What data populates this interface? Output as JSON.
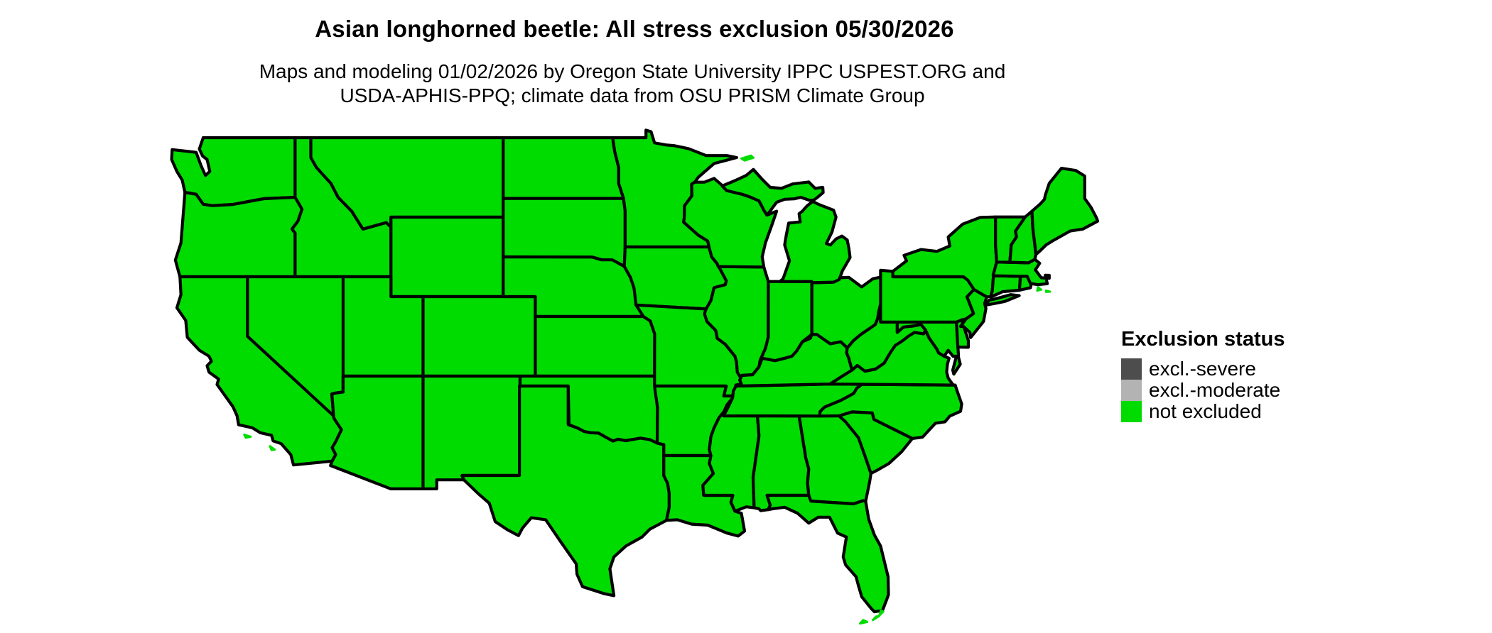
{
  "page": {
    "background_color": "#FFFFFF"
  },
  "header": {
    "title": "Asian longhorned beetle: All stress exclusion 05/30/2026",
    "subtitle_line1": "Maps and modeling 01/02/2026 by Oregon State University IPPC USPEST.ORG and",
    "subtitle_line2": "USDA-APHIS-PPQ; climate data from OSU PRISM Climate Group"
  },
  "map": {
    "region": "contiguous United States",
    "land_color": "#00DC00",
    "border_color": "#000000",
    "water_color": "#FFFFFF",
    "all_states_status": "not excluded"
  },
  "legend": {
    "title": "Exclusion status",
    "items": [
      {
        "label": "excl.-severe",
        "color": "#4D4D4D"
      },
      {
        "label": "excl.-moderate",
        "color": "#B3B3B3"
      },
      {
        "label": "not excluded",
        "color": "#00DC00"
      }
    ]
  }
}
